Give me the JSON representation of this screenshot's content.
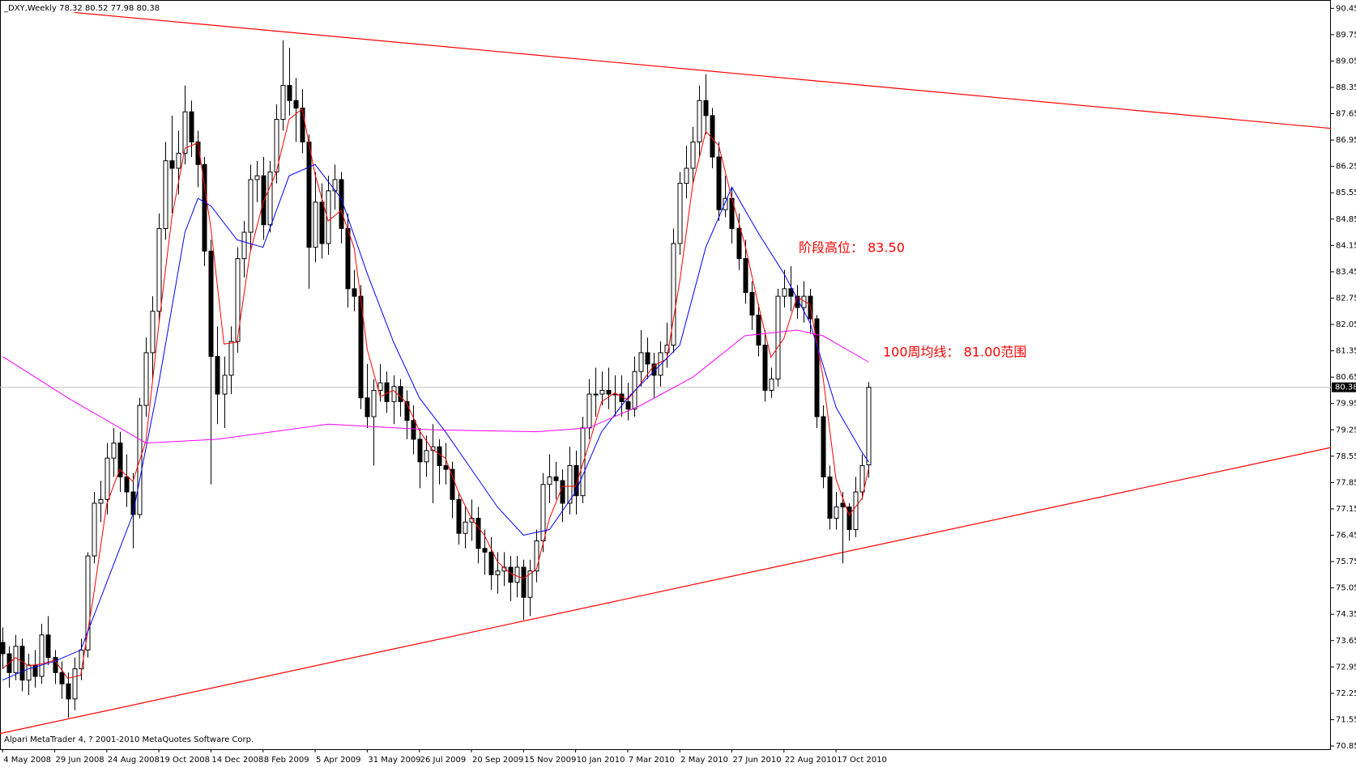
{
  "chart_data": {
    "type": "candlestick",
    "title": "_DXY,Weekly  78.32 80.52 77.98 80.38",
    "credit": "Alpari MetaTrader 4, ? 2001-2010 MetaQuotes Software Corp.",
    "up_color": "#ffffff",
    "down_color": "#000000",
    "categories": [
      "4 May 2008",
      null,
      null,
      null,
      null,
      null,
      null,
      null,
      "29 Jun 2008",
      null,
      null,
      null,
      null,
      null,
      null,
      null,
      "24 Aug 2008",
      null,
      null,
      null,
      null,
      null,
      null,
      null,
      "19 Oct 2008",
      null,
      null,
      null,
      null,
      null,
      null,
      null,
      "14 Dec 2008",
      null,
      null,
      null,
      null,
      null,
      null,
      null,
      "8 Feb 2009",
      null,
      null,
      null,
      null,
      null,
      null,
      null,
      "5 Apr 2009",
      null,
      null,
      null,
      null,
      null,
      null,
      null,
      "31 May 2009",
      null,
      null,
      null,
      null,
      null,
      null,
      null,
      "26 Jul 2009",
      null,
      null,
      null,
      null,
      null,
      null,
      null,
      "20 Sep 2009",
      null,
      null,
      null,
      null,
      null,
      null,
      null,
      "15 Nov 2009",
      null,
      null,
      null,
      null,
      null,
      null,
      null,
      "10 Jan 2010",
      null,
      null,
      null,
      null,
      null,
      null,
      null,
      "7 Mar 2010",
      null,
      null,
      null,
      null,
      null,
      null,
      null,
      "2 May 2010",
      null,
      null,
      null,
      null,
      null,
      null,
      null,
      "27 Jun 2010",
      null,
      null,
      null,
      null,
      null,
      null,
      null,
      "22 Aug 2010",
      null,
      null,
      null,
      null,
      null,
      null,
      null,
      "17 Oct 2010",
      null,
      null,
      null,
      null,
      null
    ],
    "candles": [
      [
        73.6,
        74.0,
        72.9,
        73.3
      ],
      [
        73.3,
        73.5,
        72.4,
        72.8
      ],
      [
        72.8,
        73.8,
        72.6,
        73.5
      ],
      [
        73.5,
        73.7,
        72.3,
        72.6
      ],
      [
        72.6,
        73.3,
        72.2,
        73.0
      ],
      [
        73.0,
        73.4,
        72.4,
        72.7
      ],
      [
        72.7,
        74.1,
        72.5,
        73.8
      ],
      [
        73.8,
        74.3,
        73.0,
        73.2
      ],
      [
        73.2,
        73.4,
        72.5,
        72.8
      ],
      [
        72.8,
        73.1,
        72.1,
        72.5
      ],
      [
        72.5,
        72.8,
        71.6,
        72.1
      ],
      [
        72.1,
        73.2,
        71.8,
        72.9
      ],
      [
        72.9,
        73.7,
        72.6,
        73.4
      ],
      [
        73.4,
        76.0,
        73.2,
        75.9
      ],
      [
        75.9,
        77.6,
        75.7,
        77.3
      ],
      [
        77.3,
        77.9,
        76.8,
        77.4
      ],
      [
        77.4,
        78.9,
        77.0,
        78.5
      ],
      [
        78.5,
        79.3,
        78.0,
        78.9
      ],
      [
        78.9,
        79.2,
        77.6,
        78.0
      ],
      [
        78.0,
        78.6,
        77.2,
        77.6
      ],
      [
        77.6,
        78.1,
        76.1,
        77.0
      ],
      [
        77.0,
        80.1,
        76.9,
        79.9
      ],
      [
        79.9,
        81.7,
        79.6,
        81.3
      ],
      [
        81.3,
        82.8,
        80.6,
        82.4
      ],
      [
        82.4,
        85.0,
        82.1,
        84.6
      ],
      [
        84.6,
        86.9,
        84.3,
        86.4
      ],
      [
        86.4,
        87.6,
        85.0,
        86.2
      ],
      [
        86.2,
        87.2,
        85.5,
        86.6
      ],
      [
        86.6,
        88.4,
        86.3,
        87.7
      ],
      [
        87.7,
        88.0,
        86.5,
        86.9
      ],
      [
        86.9,
        87.2,
        85.7,
        86.3
      ],
      [
        86.3,
        86.5,
        83.6,
        84.0
      ],
      [
        84.0,
        84.3,
        77.8,
        81.2
      ],
      [
        81.2,
        82.0,
        79.4,
        80.2
      ],
      [
        80.2,
        81.2,
        79.3,
        80.7
      ],
      [
        80.7,
        82.0,
        80.2,
        81.6
      ],
      [
        81.6,
        84.1,
        81.3,
        83.8
      ],
      [
        83.8,
        84.8,
        83.3,
        84.5
      ],
      [
        84.5,
        86.3,
        84.0,
        85.9
      ],
      [
        85.9,
        86.4,
        85.3,
        86.0
      ],
      [
        86.0,
        86.5,
        84.3,
        84.7
      ],
      [
        84.7,
        86.4,
        84.5,
        86.1
      ],
      [
        86.1,
        87.9,
        85.8,
        87.5
      ],
      [
        87.5,
        89.6,
        87.2,
        88.4
      ],
      [
        88.4,
        89.4,
        87.6,
        88.0
      ],
      [
        88.0,
        88.6,
        86.9,
        87.8
      ],
      [
        87.8,
        88.3,
        86.6,
        86.9
      ],
      [
        86.9,
        87.1,
        83.0,
        84.1
      ],
      [
        84.1,
        86.1,
        83.7,
        85.3
      ],
      [
        85.3,
        85.8,
        83.8,
        84.2
      ],
      [
        84.2,
        86.0,
        83.9,
        85.6
      ],
      [
        85.6,
        86.3,
        85.1,
        85.9
      ],
      [
        85.9,
        86.1,
        84.2,
        84.6
      ],
      [
        84.6,
        85.0,
        82.5,
        83.0
      ],
      [
        83.0,
        83.5,
        82.4,
        82.8
      ],
      [
        82.8,
        83.1,
        79.8,
        80.1
      ],
      [
        80.1,
        81.0,
        79.3,
        79.6
      ],
      [
        79.6,
        80.6,
        78.3,
        80.3
      ],
      [
        80.3,
        81.0,
        80.0,
        80.5
      ],
      [
        80.5,
        80.8,
        79.7,
        80.0
      ],
      [
        80.0,
        80.7,
        79.4,
        80.4
      ],
      [
        80.4,
        80.6,
        79.6,
        80.0
      ],
      [
        80.0,
        80.3,
        79.0,
        79.5
      ],
      [
        79.5,
        79.9,
        78.6,
        79.0
      ],
      [
        79.0,
        79.3,
        77.7,
        78.4
      ],
      [
        78.4,
        79.1,
        78.0,
        78.7
      ],
      [
        78.7,
        79.4,
        77.3,
        78.8
      ],
      [
        78.8,
        79.0,
        77.8,
        78.3
      ],
      [
        78.3,
        78.9,
        77.8,
        78.2
      ],
      [
        78.2,
        78.4,
        76.9,
        77.4
      ],
      [
        77.4,
        77.6,
        76.2,
        76.5
      ],
      [
        76.5,
        77.2,
        76.1,
        76.8
      ],
      [
        76.8,
        77.4,
        76.3,
        76.9
      ],
      [
        76.9,
        77.2,
        75.7,
        76.1
      ],
      [
        76.1,
        76.6,
        75.4,
        76.0
      ],
      [
        76.0,
        76.4,
        75.0,
        75.4
      ],
      [
        75.4,
        76.0,
        74.9,
        75.5
      ],
      [
        75.5,
        76.0,
        75.1,
        75.6
      ],
      [
        75.6,
        75.9,
        74.7,
        75.2
      ],
      [
        75.2,
        75.9,
        74.8,
        75.6
      ],
      [
        75.6,
        75.8,
        74.2,
        74.8
      ],
      [
        74.8,
        75.8,
        74.3,
        75.5
      ],
      [
        75.5,
        76.6,
        75.2,
        76.3
      ],
      [
        76.3,
        78.1,
        76.0,
        77.8
      ],
      [
        77.8,
        78.6,
        77.3,
        78.0
      ],
      [
        78.0,
        78.4,
        77.4,
        77.9
      ],
      [
        77.9,
        78.2,
        76.8,
        77.3
      ],
      [
        77.3,
        78.8,
        77.0,
        78.3
      ],
      [
        78.3,
        78.7,
        77.0,
        77.5
      ],
      [
        77.5,
        79.6,
        77.3,
        79.3
      ],
      [
        79.3,
        80.6,
        79.0,
        80.2
      ],
      [
        80.2,
        80.9,
        79.6,
        80.2
      ],
      [
        80.2,
        80.8,
        79.9,
        80.3
      ],
      [
        80.3,
        80.9,
        79.8,
        80.2
      ],
      [
        80.2,
        80.7,
        79.6,
        80.2
      ],
      [
        80.2,
        80.7,
        79.6,
        80.0
      ],
      [
        80.0,
        80.5,
        79.5,
        79.8
      ],
      [
        79.8,
        81.2,
        79.6,
        80.8
      ],
      [
        80.8,
        81.9,
        80.4,
        81.3
      ],
      [
        81.3,
        81.7,
        80.6,
        81.0
      ],
      [
        81.0,
        81.3,
        80.1,
        80.7
      ],
      [
        80.7,
        81.6,
        80.4,
        81.3
      ],
      [
        81.3,
        82.1,
        80.9,
        81.5
      ],
      [
        81.5,
        84.6,
        81.3,
        84.2
      ],
      [
        84.2,
        86.1,
        83.9,
        85.8
      ],
      [
        85.8,
        86.8,
        85.4,
        86.2
      ],
      [
        86.2,
        87.3,
        85.8,
        86.9
      ],
      [
        86.9,
        88.4,
        86.5,
        88.0
      ],
      [
        88.0,
        88.7,
        87.1,
        87.6
      ],
      [
        87.6,
        87.8,
        86.2,
        86.5
      ],
      [
        86.5,
        86.9,
        84.8,
        85.1
      ],
      [
        85.1,
        86.0,
        84.9,
        85.4
      ],
      [
        85.4,
        85.7,
        84.2,
        84.6
      ],
      [
        84.6,
        85.0,
        83.5,
        83.8
      ],
      [
        83.8,
        84.3,
        82.6,
        82.9
      ],
      [
        82.9,
        83.2,
        81.9,
        82.3
      ],
      [
        82.3,
        82.6,
        81.2,
        81.5
      ],
      [
        81.5,
        81.9,
        80.0,
        80.3
      ],
      [
        80.3,
        80.9,
        80.1,
        80.6
      ],
      [
        80.6,
        83.0,
        80.4,
        82.8
      ],
      [
        82.8,
        83.5,
        82.5,
        83.0
      ],
      [
        83.0,
        83.6,
        82.4,
        82.8
      ],
      [
        82.8,
        83.1,
        82.2,
        82.5
      ],
      [
        82.5,
        83.2,
        82.1,
        82.8
      ],
      [
        82.8,
        83.0,
        81.8,
        82.2
      ],
      [
        82.2,
        82.3,
        79.3,
        79.6
      ],
      [
        79.6,
        79.9,
        77.7,
        78.0
      ],
      [
        78.0,
        78.3,
        76.6,
        76.9
      ],
      [
        76.9,
        77.6,
        76.6,
        77.2
      ],
      [
        77.3,
        77.6,
        75.7,
        77.2
      ],
      [
        77.2,
        77.3,
        76.3,
        76.6
      ],
      [
        76.6,
        78.0,
        76.4,
        77.6
      ],
      [
        77.6,
        78.6,
        77.4,
        78.3
      ],
      [
        78.32,
        80.52,
        77.98,
        80.38
      ]
    ],
    "lines": [
      {
        "color": "#ff0000",
        "x": [
          0,
          2,
          4,
          6,
          8,
          10,
          12,
          14,
          16,
          18,
          20,
          22,
          24,
          26,
          28,
          30,
          32,
          34,
          36,
          38,
          40,
          42,
          44,
          46,
          48,
          50,
          52,
          54,
          56,
          58,
          60,
          62,
          64,
          66,
          68,
          70,
          72,
          74,
          76,
          78,
          80,
          82,
          84,
          86,
          88,
          90,
          92,
          94,
          96,
          98,
          100,
          102,
          104,
          106,
          108,
          110,
          112,
          114,
          116,
          118,
          120,
          122,
          124,
          126,
          128,
          130,
          132,
          133
        ],
        "values": [
          72.9,
          73.2,
          72.98,
          73.03,
          73.13,
          72.65,
          72.73,
          74.88,
          77.28,
          78.2,
          77.88,
          78.95,
          82.05,
          84.9,
          86.73,
          86.88,
          84.6,
          81.53,
          81.58,
          83.95,
          85.28,
          86.08,
          87.5,
          87.78,
          86.03,
          84.8,
          85.08,
          84.08,
          81.38,
          80.13,
          80.3,
          79.98,
          79.23,
          78.73,
          78.5,
          77.6,
          76.9,
          76.45,
          75.75,
          75.43,
          75.3,
          75.55,
          76.9,
          77.75,
          77.75,
          78.83,
          80.0,
          80.23,
          80.05,
          80.48,
          80.95,
          81.13,
          83.2,
          85.78,
          87.18,
          86.8,
          85.4,
          84.18,
          82.63,
          81.18,
          81.68,
          82.78,
          82.58,
          80.65,
          77.93,
          76.98,
          77.43,
          78.22
        ]
      },
      {
        "color": "#0000ff",
        "x": [
          0,
          4,
          8,
          12,
          16,
          20,
          24,
          28,
          30,
          32,
          36,
          40,
          44,
          48,
          52,
          56,
          60,
          64,
          68,
          72,
          76,
          80,
          84,
          88,
          92,
          96,
          100,
          104,
          108,
          112,
          116,
          120,
          124,
          128,
          132,
          133
        ],
        "values": [
          72.6,
          72.9,
          73.1,
          73.4,
          75.2,
          77.0,
          80.5,
          84.5,
          85.4,
          85.2,
          84.3,
          84.1,
          86.0,
          86.3,
          85.4,
          83.4,
          81.6,
          80.1,
          79.2,
          78.2,
          77.2,
          76.45,
          76.6,
          77.6,
          79.2,
          80.1,
          80.8,
          81.5,
          84.1,
          85.7,
          84.5,
          83.4,
          82.1,
          79.85,
          78.65,
          78.4
        ]
      },
      {
        "color": "#ff00ff",
        "x": [
          0,
          10,
          22,
          33,
          50,
          66,
          82,
          90,
          98,
          106,
          114,
          122,
          126,
          133
        ],
        "values": [
          81.2,
          80.1,
          78.9,
          79.0,
          79.4,
          79.25,
          79.2,
          79.3,
          79.9,
          80.65,
          81.75,
          81.9,
          81.75,
          81.05
        ]
      }
    ],
    "trendlines": [
      {
        "color": "#ff0000",
        "x": [
          11,
          204
        ],
        "values": [
          90.34,
          87.26
        ]
      },
      {
        "color": "#ff0000",
        "x": [
          -0.4,
          204
        ],
        "values": [
          71.18,
          78.78
        ]
      }
    ],
    "last_price": 80.38,
    "last_price_color": "#c0c0c0",
    "annotations": [
      {
        "text": "阶段高位： 83.50",
        "color": "#ff0000"
      },
      {
        "text": "100周均线： 81.00范围",
        "color": "#ff0000"
      }
    ],
    "xlim": [
      -0.4,
      204
    ],
    "ylim": [
      70.85,
      90.65
    ],
    "yticks": [
      90.45,
      89.75,
      89.05,
      88.35,
      87.65,
      86.95,
      86.25,
      85.55,
      84.85,
      84.15,
      83.45,
      82.75,
      82.05,
      81.35,
      80.65,
      79.95,
      79.25,
      78.55,
      77.85,
      77.15,
      76.45,
      75.75,
      75.05,
      74.35,
      73.65,
      72.95,
      72.25,
      71.55,
      70.85
    ]
  }
}
